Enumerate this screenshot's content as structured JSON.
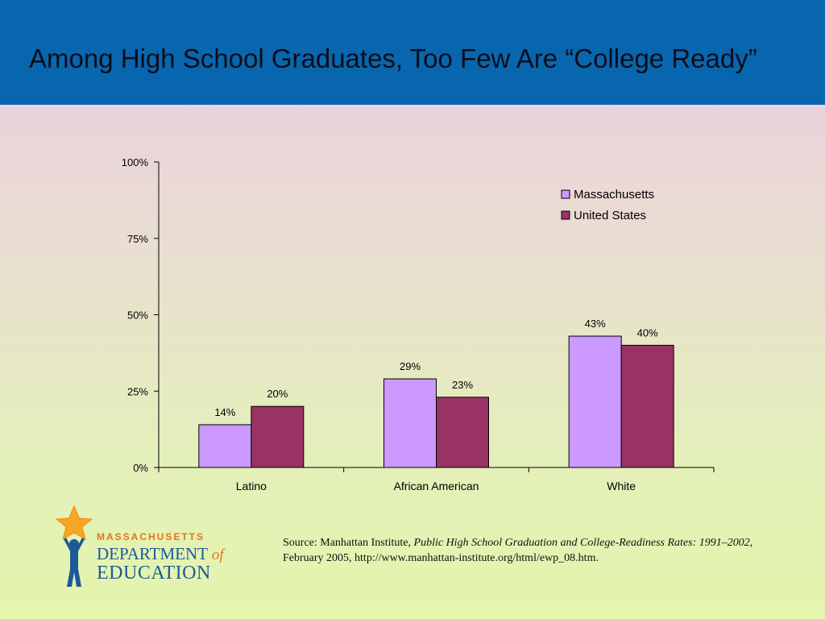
{
  "slide": {
    "title": "Among High School Graduates, Too Few Are “College Ready”"
  },
  "chart_data": {
    "type": "bar",
    "categories": [
      "Latino",
      "African American",
      "White"
    ],
    "series": [
      {
        "name": "Massachusetts",
        "values": [
          14,
          29,
          43
        ],
        "labels": [
          "14%",
          "29%",
          "43%"
        ],
        "color": "#cc99ff"
      },
      {
        "name": "United States",
        "values": [
          20,
          23,
          40
        ],
        "labels": [
          "20%",
          "23%",
          "40%"
        ],
        "color": "#993366"
      }
    ],
    "ylim": [
      0,
      100
    ],
    "yticks": [
      0,
      25,
      50,
      75,
      100
    ],
    "ytick_labels": [
      "0%",
      "25%",
      "50%",
      "75%",
      "100%"
    ],
    "legend_position": "top-right",
    "grid": false
  },
  "logo": {
    "line1": "MASSACHUSETTS",
    "line2": "DEPARTMENT",
    "line2_suffix": "of",
    "line3": "EDUCATION"
  },
  "source": {
    "prefix": "Source: Manhattan Institute",
    "title": "Public High School Graduation and College-Readiness Rates: 1991–2002",
    "suffix": ", February 2005, http://www.manhattan-institute.org/html/ewp_08.htm."
  },
  "colors": {
    "header": "#0766ae",
    "massachusetts": "#cc99ff",
    "united_states": "#993366"
  }
}
